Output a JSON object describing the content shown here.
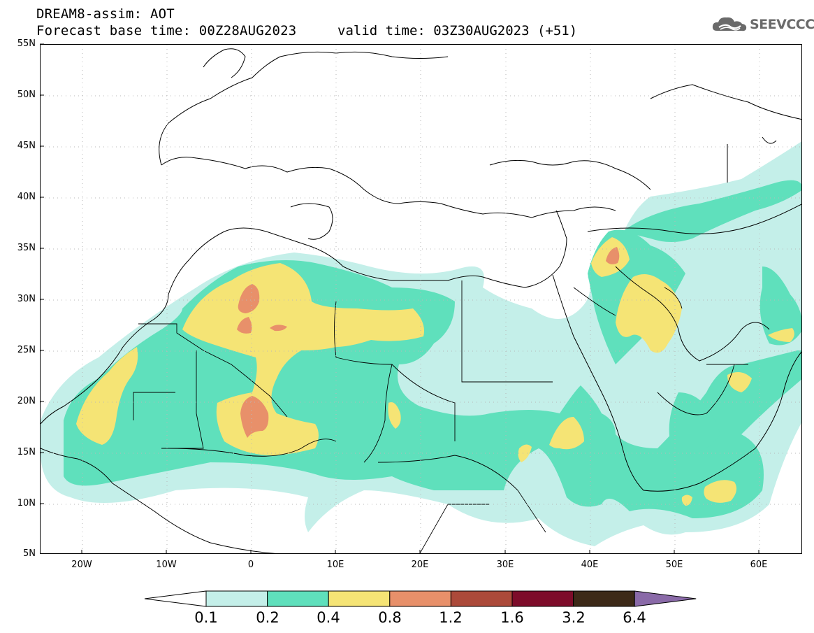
{
  "header": {
    "title": "DREAM8-assim: AOT",
    "forecast_base": "Forecast base time: 00Z28AUG2023",
    "valid_time": "valid time: 03Z30AUG2023 (+51)",
    "logo_text": "SEEVCCC"
  },
  "map": {
    "lon_range": [
      -25,
      65
    ],
    "lat_range": [
      5,
      55
    ],
    "lat_ticks": [
      "55N",
      "50N",
      "45N",
      "40N",
      "35N",
      "30N",
      "25N",
      "20N",
      "15N",
      "10N",
      "5N"
    ],
    "lon_ticks": [
      "20W",
      "10W",
      "0",
      "10E",
      "20E",
      "30E",
      "40E",
      "50E",
      "60E"
    ],
    "grid": "dotted"
  },
  "colorbar": {
    "labels": [
      "0.1",
      "0.2",
      "0.4",
      "0.8",
      "1.2",
      "1.6",
      "3.2",
      "6.4"
    ],
    "colors": [
      "#ffffff",
      "#c4efe9",
      "#5fe0bc",
      "#f5e475",
      "#e8906a",
      "#ac4a3a",
      "#7d0c2a",
      "#3d2a18",
      "#8a6aa8"
    ]
  }
}
